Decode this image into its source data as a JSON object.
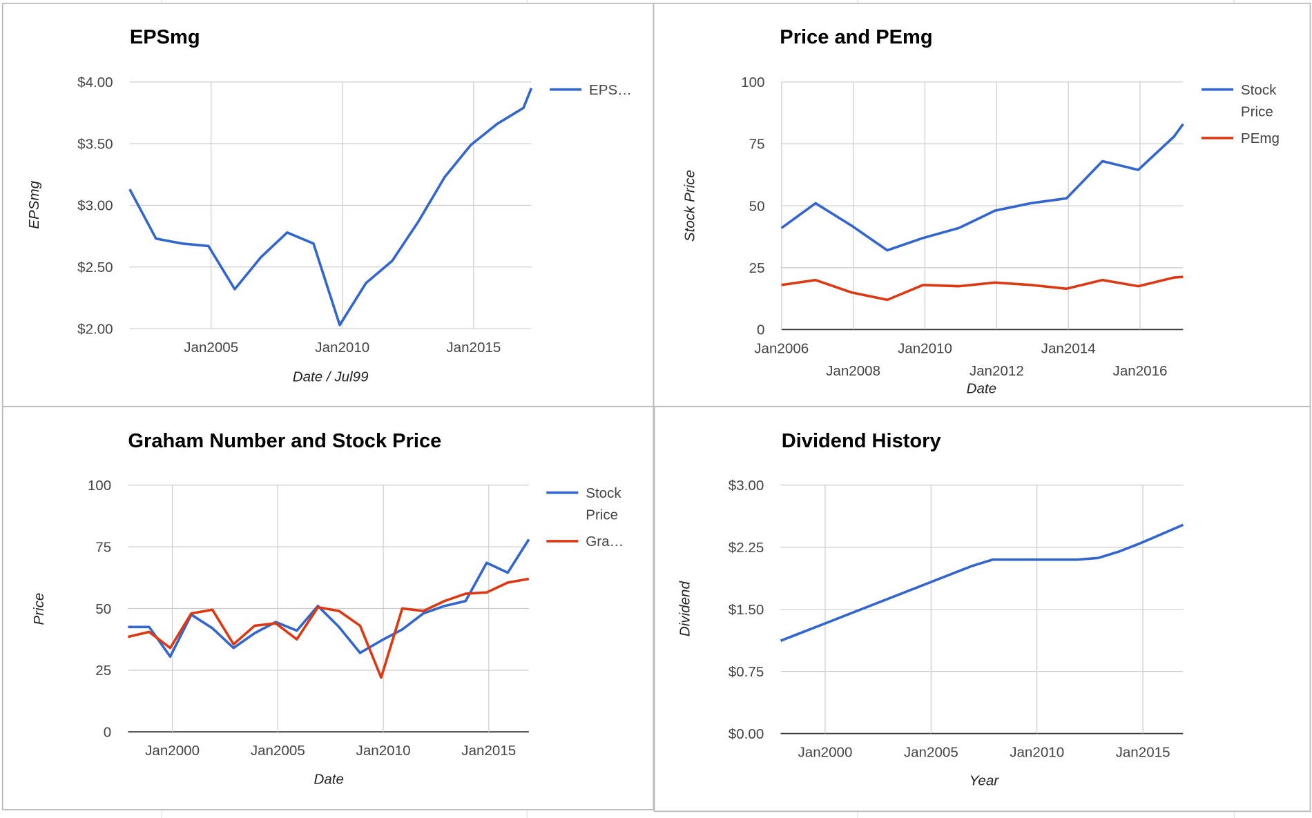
{
  "chart_data": [
    {
      "type": "line",
      "title": "EPSmg",
      "x_label": "Date / Jul99",
      "y_label": "EPSmg",
      "x": [
        2001.9,
        2002.9,
        2003.9,
        2004.9,
        2005.9,
        2006.9,
        2007.9,
        2008.9,
        2009.9,
        2010.9,
        2011.9,
        2012.9,
        2013.9,
        2014.9,
        2015.9,
        2016.9,
        2017.2
      ],
      "series": [
        {
          "name": "EPS…",
          "color": "#3366cc",
          "values": [
            3.13,
            2.73,
            2.69,
            2.67,
            2.32,
            2.58,
            2.78,
            2.69,
            2.03,
            2.37,
            2.55,
            2.87,
            3.23,
            3.49,
            3.66,
            3.79,
            3.95
          ]
        }
      ],
      "xlim": [
        2001.9,
        2017.2
      ],
      "xticks": [
        {
          "value": 2005,
          "label": "Jan2005"
        },
        {
          "value": 2010,
          "label": "Jan2010"
        },
        {
          "value": 2015,
          "label": "Jan2015"
        }
      ],
      "ylim": [
        2,
        4
      ],
      "yticks": [
        {
          "value": 2,
          "label": "$2.00"
        },
        {
          "value": 2.5,
          "label": "$2.50"
        },
        {
          "value": 3,
          "label": "$3.00"
        },
        {
          "value": 3.5,
          "label": "$3.50"
        },
        {
          "value": 4,
          "label": "$4.00"
        }
      ],
      "grid": true,
      "legend": "right"
    },
    {
      "type": "line",
      "title": "Price and PEmg",
      "x_label": "Date",
      "y_label": "Stock Price",
      "x": [
        2006,
        2006.95,
        2007.95,
        2008.95,
        2009.95,
        2010.95,
        2011.95,
        2012.95,
        2013.95,
        2014.95,
        2015.95,
        2016.95,
        2017.2
      ],
      "series": [
        {
          "name": "Stock Price",
          "color": "#3366cc",
          "values": [
            41,
            51,
            42,
            32,
            37,
            41,
            48,
            51,
            53,
            68,
            64.5,
            78,
            83
          ]
        },
        {
          "name": "PEmg",
          "color": "#dc3912",
          "values": [
            18,
            20,
            15,
            12,
            18,
            17.5,
            19,
            18,
            16.5,
            20,
            17.5,
            21,
            21.3
          ]
        }
      ],
      "xlim": [
        2006,
        2017.2
      ],
      "xticks": [
        {
          "value": 2006,
          "label": "Jan2006"
        },
        {
          "value": 2008,
          "label": "Jan2008"
        },
        {
          "value": 2010,
          "label": "Jan2010"
        },
        {
          "value": 2012,
          "label": "Jan2012"
        },
        {
          "value": 2014,
          "label": "Jan2014"
        },
        {
          "value": 2016,
          "label": "Jan2016"
        }
      ],
      "ylim": [
        0,
        100
      ],
      "yticks": [
        0,
        25,
        50,
        75,
        100
      ],
      "grid": true,
      "legend": "right"
    },
    {
      "type": "line",
      "title": "Graham Number and Stock Price",
      "x_label": "Date",
      "y_label": "Price",
      "x": [
        1997.9,
        1998.9,
        1999.9,
        2000.9,
        2001.9,
        2002.9,
        2003.9,
        2004.9,
        2005.9,
        2006.9,
        2007.9,
        2008.9,
        2009.9,
        2010.9,
        2011.9,
        2012.9,
        2013.9,
        2014.9,
        2015.9,
        2016.9
      ],
      "series": [
        {
          "name": "Stock Price",
          "color": "#3366cc",
          "values": [
            42.5,
            42.5,
            30.5,
            47.5,
            42,
            34,
            40,
            44.5,
            41,
            51,
            42.5,
            32,
            37,
            41.5,
            48,
            51,
            53,
            68.5,
            64.5,
            78
          ]
        },
        {
          "name": "Gra…",
          "color": "#dc3912",
          "values": [
            38.5,
            40.5,
            34,
            48,
            49.5,
            35.5,
            43,
            44,
            37.5,
            50.5,
            49,
            43,
            22,
            50,
            49,
            53,
            56,
            56.5,
            60.5,
            62
          ]
        }
      ],
      "xlim": [
        1997.9,
        2016.9
      ],
      "xticks": [
        {
          "value": 2000,
          "label": "Jan2000"
        },
        {
          "value": 2005,
          "label": "Jan2005"
        },
        {
          "value": 2010,
          "label": "Jan2010"
        },
        {
          "value": 2015,
          "label": "Jan2015"
        }
      ],
      "ylim": [
        0,
        100
      ],
      "yticks": [
        0,
        25,
        50,
        75,
        100
      ],
      "grid": true,
      "legend": "right"
    },
    {
      "type": "line",
      "title": "Dividend History",
      "x_label": "Year",
      "y_label": "Dividend",
      "x": [
        1997.9,
        1998.9,
        1999.9,
        2000.9,
        2001.9,
        2002.9,
        2003.9,
        2004.9,
        2005.9,
        2006.9,
        2007.9,
        2008.9,
        2009.9,
        2010.9,
        2011.9,
        2012.9,
        2013.9,
        2014.9,
        2015.9,
        2016.9
      ],
      "series": [
        {
          "color": "#3366cc",
          "values": [
            1.12,
            1.22,
            1.32,
            1.42,
            1.52,
            1.62,
            1.72,
            1.82,
            1.92,
            2.02,
            2.1,
            2.1,
            2.1,
            2.1,
            2.1,
            2.12,
            2.2,
            2.3,
            2.41,
            2.52
          ]
        }
      ],
      "xlim": [
        1997.9,
        2016.9
      ],
      "xticks": [
        {
          "value": 2000,
          "label": "Jan2000"
        },
        {
          "value": 2005,
          "label": "Jan2005"
        },
        {
          "value": 2010,
          "label": "Jan2010"
        },
        {
          "value": 2015,
          "label": "Jan2015"
        }
      ],
      "ylim": [
        0,
        3
      ],
      "yticks": [
        {
          "value": 0,
          "label": "$0.00"
        },
        {
          "value": 0.75,
          "label": "$0.75"
        },
        {
          "value": 1.5,
          "label": "$1.50"
        },
        {
          "value": 2.25,
          "label": "$2.25"
        },
        {
          "value": 3,
          "label": "$3.00"
        }
      ],
      "grid": true
    }
  ]
}
